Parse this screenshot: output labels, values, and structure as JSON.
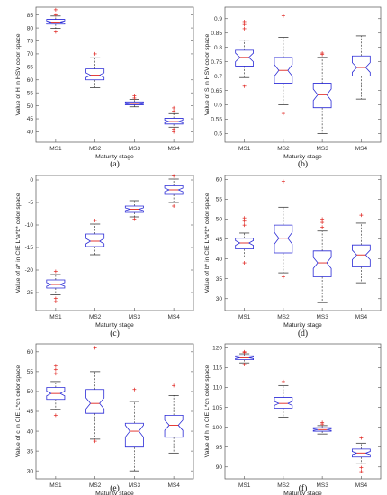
{
  "colors": {
    "box": "#2b2bd6",
    "median": "#e0241f",
    "outlier": "#e0241f",
    "whisker": "#222222",
    "axis": "#555555"
  },
  "chart_data": [
    {
      "type": "boxplot",
      "panel_label": "(a)",
      "xlabel": "Maturity stage",
      "ylabel": "Value of H in HSV color space",
      "ylim": [
        36,
        88
      ],
      "yticks": [
        "40",
        "45",
        "50",
        "55",
        "60",
        "65",
        "70",
        "75",
        "80",
        "85"
      ],
      "ytick_values": [
        40,
        45,
        50,
        55,
        60,
        65,
        70,
        75,
        80,
        85
      ],
      "categories": [
        "MS1",
        "MS2",
        "MS3",
        "MS4"
      ],
      "boxes": [
        {
          "q1": 81.5,
          "median": 82.3,
          "q3": 83.3,
          "whisker_low": 79.8,
          "whisker_high": 84.6,
          "notch": [
            81.9,
            82.7
          ],
          "outliers": [
            78.5,
            85.0,
            87.0
          ]
        },
        {
          "q1": 60.0,
          "median": 61.8,
          "q3": 64.2,
          "whisker_low": 57.0,
          "whisker_high": 68.5,
          "notch": [
            60.9,
            62.7
          ],
          "outliers": [
            70.0
          ]
        },
        {
          "q1": 50.4,
          "median": 50.9,
          "q3": 51.5,
          "whisker_low": 49.6,
          "whisker_high": 52.5,
          "notch": [
            50.6,
            51.2
          ],
          "outliers": [
            53.0,
            53.8
          ]
        },
        {
          "q1": 43.0,
          "median": 44.0,
          "q3": 45.2,
          "whisker_low": 41.8,
          "whisker_high": 47.0,
          "notch": [
            43.5,
            44.5
          ],
          "outliers": [
            40.0,
            41.0,
            48.0,
            49.2
          ]
        }
      ]
    },
    {
      "type": "boxplot",
      "panel_label": "(b)",
      "xlabel": "Maturity stage",
      "ylabel": "Value of S in HSV color space",
      "ylim": [
        0.47,
        0.94
      ],
      "yticks": [
        "0.5",
        "0.55",
        "0.6",
        "0.65",
        "0.7",
        "0.75",
        "0.8",
        "0.85",
        "0.9"
      ],
      "ytick_values": [
        0.5,
        0.55,
        0.6,
        0.65,
        0.7,
        0.75,
        0.8,
        0.85,
        0.9
      ],
      "categories": [
        "MS1",
        "MS2",
        "MS3",
        "MS4"
      ],
      "boxes": [
        {
          "q1": 0.735,
          "median": 0.765,
          "q3": 0.79,
          "whisker_low": 0.695,
          "whisker_high": 0.825,
          "notch": [
            0.75,
            0.78
          ],
          "outliers": [
            0.665,
            0.865,
            0.88,
            0.89
          ]
        },
        {
          "q1": 0.675,
          "median": 0.72,
          "q3": 0.765,
          "whisker_low": 0.6,
          "whisker_high": 0.835,
          "notch": [
            0.7,
            0.74
          ],
          "outliers": [
            0.57,
            0.91
          ]
        },
        {
          "q1": 0.59,
          "median": 0.635,
          "q3": 0.675,
          "whisker_low": 0.5,
          "whisker_high": 0.765,
          "notch": [
            0.615,
            0.655
          ],
          "outliers": [
            0.775,
            0.78
          ]
        },
        {
          "q1": 0.7,
          "median": 0.73,
          "q3": 0.77,
          "whisker_low": 0.62,
          "whisker_high": 0.84,
          "notch": [
            0.713,
            0.747
          ],
          "outliers": []
        }
      ]
    },
    {
      "type": "boxplot",
      "panel_label": "(c)",
      "xlabel": "Maturity stage",
      "ylabel": "Value of a* in CIE L*a*b* color space",
      "ylim": [
        -29,
        1
      ],
      "yticks": [
        "-25",
        "-20",
        "-15",
        "-10",
        "-5",
        "0"
      ],
      "ytick_values": [
        -25,
        -20,
        -15,
        -10,
        -5,
        0
      ],
      "categories": [
        "MS1",
        "MS2",
        "MS3",
        "MS4"
      ],
      "boxes": [
        {
          "q1": -24.0,
          "median": -23.2,
          "q3": -22.2,
          "whisker_low": -25.5,
          "whisker_high": -21.0,
          "notch": [
            -23.6,
            -22.8
          ],
          "outliers": [
            -26.3,
            -27.0,
            -20.3
          ]
        },
        {
          "q1": -14.8,
          "median": -13.6,
          "q3": -12.0,
          "whisker_low": -16.6,
          "whisker_high": -9.8,
          "notch": [
            -14.2,
            -13.0
          ],
          "outliers": [
            -9.0
          ]
        },
        {
          "q1": -7.2,
          "median": -6.5,
          "q3": -5.8,
          "whisker_low": -8.2,
          "whisker_high": -4.6,
          "notch": [
            -6.8,
            -6.2
          ],
          "outliers": [
            -8.7
          ]
        },
        {
          "q1": -3.2,
          "median": -2.2,
          "q3": -1.3,
          "whisker_low": -5.0,
          "whisker_high": 0.2,
          "notch": [
            -2.6,
            -1.8
          ],
          "outliers": [
            -5.8,
            0.9
          ]
        }
      ]
    },
    {
      "type": "boxplot",
      "panel_label": "(d)",
      "xlabel": "Maturity stage",
      "ylabel": "Value of b* in CIE L*a*b* color space",
      "ylim": [
        27,
        61
      ],
      "yticks": [
        "30",
        "35",
        "40",
        "45",
        "50",
        "55",
        "60"
      ],
      "ytick_values": [
        30,
        35,
        40,
        45,
        50,
        55,
        60
      ],
      "categories": [
        "MS1",
        "MS2",
        "MS3",
        "MS4"
      ],
      "boxes": [
        {
          "q1": 42.5,
          "median": 44.0,
          "q3": 45.2,
          "whisker_low": 40.5,
          "whisker_high": 46.5,
          "notch": [
            43.4,
            44.6
          ],
          "outliers": [
            39.0,
            48.5,
            49.5,
            50.3
          ]
        },
        {
          "q1": 41.5,
          "median": 45.2,
          "q3": 48.5,
          "whisker_low": 36.5,
          "whisker_high": 53.0,
          "notch": [
            43.7,
            46.7
          ],
          "outliers": [
            35.5,
            59.5
          ]
        },
        {
          "q1": 35.5,
          "median": 39.0,
          "q3": 42.0,
          "whisker_low": 29.0,
          "whisker_high": 47.0,
          "notch": [
            37.6,
            40.4
          ],
          "outliers": [
            48.0,
            49.2,
            50.0
          ]
        },
        {
          "q1": 38.0,
          "median": 41.0,
          "q3": 43.5,
          "whisker_low": 34.0,
          "whisker_high": 49.0,
          "notch": [
            39.8,
            42.2
          ],
          "outliers": [
            51.0
          ]
        }
      ]
    },
    {
      "type": "boxplot",
      "panel_label": "(e)",
      "xlabel": "Maturity stage",
      "ylabel": "Value of c in CIE L*ch color space",
      "ylim": [
        28,
        62
      ],
      "yticks": [
        "30",
        "35",
        "40",
        "45",
        "50",
        "55",
        "60"
      ],
      "ytick_values": [
        30,
        35,
        40,
        45,
        50,
        55,
        60
      ],
      "categories": [
        "MS1",
        "MS2",
        "MS3",
        "MS4"
      ],
      "boxes": [
        {
          "q1": 48.0,
          "median": 49.5,
          "q3": 51.0,
          "whisker_low": 45.5,
          "whisker_high": 52.5,
          "notch": [
            48.9,
            50.1
          ],
          "outliers": [
            44.0,
            54.5,
            55.5,
            56.5
          ]
        },
        {
          "q1": 44.5,
          "median": 47.0,
          "q3": 50.5,
          "whisker_low": 38.0,
          "whisker_high": 55.0,
          "notch": [
            45.6,
            48.4
          ],
          "outliers": [
            37.5,
            61.0
          ]
        },
        {
          "q1": 36.0,
          "median": 40.0,
          "q3": 42.0,
          "whisker_low": 30.0,
          "whisker_high": 47.5,
          "notch": [
            38.5,
            41.5
          ],
          "outliers": [
            50.5
          ]
        },
        {
          "q1": 38.5,
          "median": 41.5,
          "q3": 44.0,
          "whisker_low": 34.5,
          "whisker_high": 49.0,
          "notch": [
            40.2,
            42.8
          ],
          "outliers": [
            51.5
          ]
        }
      ]
    },
    {
      "type": "boxplot",
      "panel_label": "(f)",
      "xlabel": "Maturity stage",
      "ylabel": "Value of h in CIE L*ch color space",
      "ylim": [
        87,
        121
      ],
      "yticks": [
        "90",
        "95",
        "100",
        "105",
        "110",
        "115",
        "120"
      ],
      "ytick_values": [
        90,
        95,
        100,
        105,
        110,
        115,
        120
      ],
      "categories": [
        "MS1",
        "MS2",
        "MS3",
        "MS4"
      ],
      "boxes": [
        {
          "q1": 117.0,
          "median": 117.5,
          "q3": 118.0,
          "whisker_low": 116.2,
          "whisker_high": 118.5,
          "notch": [
            117.3,
            117.7
          ],
          "outliers": [
            115.8,
            118.8,
            119.0
          ]
        },
        {
          "q1": 104.8,
          "median": 106.0,
          "q3": 107.5,
          "whisker_low": 102.5,
          "whisker_high": 110.5,
          "notch": [
            105.5,
            106.5
          ],
          "outliers": [
            111.5
          ]
        },
        {
          "q1": 99.0,
          "median": 99.4,
          "q3": 99.9,
          "whisker_low": 98.3,
          "whisker_high": 100.4,
          "notch": [
            99.2,
            99.6
          ],
          "outliers": [
            100.8,
            101.2
          ]
        },
        {
          "q1": 92.5,
          "median": 93.5,
          "q3": 94.5,
          "whisker_low": 90.8,
          "whisker_high": 96.0,
          "notch": [
            93.1,
            93.9
          ],
          "outliers": [
            89.8,
            88.8,
            97.3
          ]
        }
      ]
    }
  ]
}
